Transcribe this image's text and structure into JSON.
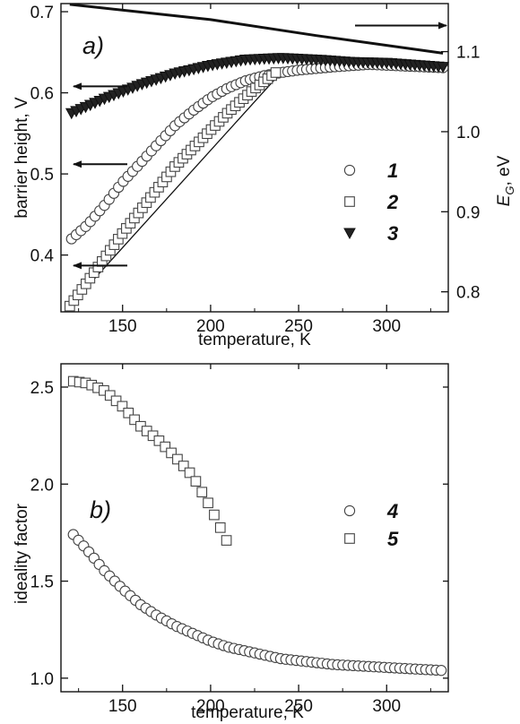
{
  "chart_data": [
    {
      "type": "scatter",
      "panel_label": "a)",
      "xlabel": "temperature, K",
      "ylabel": "barrier height, V",
      "y2label": "E",
      "y2label_sub": "G",
      "y2label_unit": ", eV",
      "xlim": [
        115,
        335
      ],
      "ylim": [
        0.33,
        0.71
      ],
      "y2lim": [
        0.775,
        1.16
      ],
      "xticks": [
        150,
        200,
        250,
        300
      ],
      "yticks": [
        0.4,
        0.5,
        0.6,
        0.7
      ],
      "y2ticks": [
        0.8,
        0.9,
        1.0,
        1.1
      ],
      "xtick_labels": [
        "150",
        "200",
        "250",
        "300"
      ],
      "ytick_labels": [
        "0.4",
        "0.5",
        "0.6",
        "0.7"
      ],
      "y2tick_labels": [
        "0.8",
        "0.9",
        "1.0",
        "1.1"
      ],
      "legend_position": "center-right",
      "series": [
        {
          "name": "1",
          "marker": "circle",
          "axis": "left",
          "x_range": [
            121,
            332
          ],
          "points": 80,
          "curve": [
            [
              121,
              0.42
            ],
            [
              130,
              0.437
            ],
            [
              140,
              0.462
            ],
            [
              150,
              0.49
            ],
            [
              160,
              0.513
            ],
            [
              170,
              0.537
            ],
            [
              180,
              0.56
            ],
            [
              190,
              0.578
            ],
            [
              200,
              0.594
            ],
            [
              210,
              0.606
            ],
            [
              220,
              0.615
            ],
            [
              230,
              0.621
            ],
            [
              240,
              0.625
            ],
            [
              250,
              0.628
            ],
            [
              270,
              0.632
            ],
            [
              290,
              0.635
            ],
            [
              310,
              0.633
            ],
            [
              332,
              0.631
            ]
          ]
        },
        {
          "name": "2",
          "marker": "square",
          "axis": "left",
          "x_range": [
            120,
            237
          ],
          "points": 52,
          "curve": [
            [
              120,
              0.337
            ],
            [
              150,
              0.427
            ],
            [
              180,
              0.51
            ],
            [
              210,
              0.576
            ],
            [
              225,
              0.605
            ],
            [
              237,
              0.625
            ]
          ]
        },
        {
          "name": "3",
          "marker": "triangle-down",
          "axis": "left",
          "x_range": [
            121,
            332
          ],
          "points": 80,
          "curve": [
            [
              121,
              0.575
            ],
            [
              140,
              0.593
            ],
            [
              160,
              0.61
            ],
            [
              180,
              0.624
            ],
            [
              200,
              0.634
            ],
            [
              220,
              0.641
            ],
            [
              240,
              0.643
            ],
            [
              260,
              0.641
            ],
            [
              280,
              0.638
            ],
            [
              300,
              0.637
            ],
            [
              332,
              0.632
            ]
          ]
        },
        {
          "name": "E_G",
          "marker": "line",
          "axis": "right",
          "curve": [
            [
              120,
              1.159
            ],
            [
              200,
              1.14
            ],
            [
              260,
              1.12
            ],
            [
              332,
              1.098
            ]
          ]
        }
      ],
      "fit_line": {
        "axis": "left",
        "points": [
          [
            117,
            0.33
          ],
          [
            240,
            0.625
          ]
        ]
      },
      "arrows": [
        {
          "direction": "left",
          "y": 0.608
        },
        {
          "direction": "left",
          "y": 0.512
        },
        {
          "direction": "left",
          "y": 0.387
        },
        {
          "direction": "right",
          "y": 0.683
        }
      ]
    },
    {
      "type": "scatter",
      "panel_label": "b)",
      "xlabel": "temperature, K",
      "ylabel": "ideality factor",
      "xlim": [
        115,
        335
      ],
      "ylim": [
        0.93,
        2.62
      ],
      "xticks": [
        150,
        200,
        250,
        300
      ],
      "yticks": [
        1.0,
        1.5,
        2.0,
        2.5
      ],
      "xtick_labels": [
        "150",
        "200",
        "250",
        "300"
      ],
      "ytick_labels": [
        "1.0",
        "1.5",
        "2.0",
        "2.5"
      ],
      "legend_position": "center-right",
      "series": [
        {
          "name": "4",
          "marker": "circle",
          "x_range": [
            122,
            331
          ],
          "points": 72,
          "curve": [
            [
              122,
              1.74
            ],
            [
              130,
              1.66
            ],
            [
              140,
              1.55
            ],
            [
              150,
              1.46
            ],
            [
              160,
              1.38
            ],
            [
              170,
              1.32
            ],
            [
              180,
              1.27
            ],
            [
              190,
              1.23
            ],
            [
              200,
              1.19
            ],
            [
              210,
              1.16
            ],
            [
              220,
              1.14
            ],
            [
              230,
              1.12
            ],
            [
              240,
              1.1
            ],
            [
              250,
              1.09
            ],
            [
              270,
              1.07
            ],
            [
              290,
              1.06
            ],
            [
              310,
              1.05
            ],
            [
              331,
              1.04
            ]
          ]
        },
        {
          "name": "5",
          "marker": "square",
          "x_range": [
            122,
            209
          ],
          "points": 26,
          "curve": [
            [
              122,
              2.53
            ],
            [
              130,
              2.52
            ],
            [
              140,
              2.48
            ],
            [
              150,
              2.4
            ],
            [
              160,
              2.3
            ],
            [
              170,
              2.23
            ],
            [
              180,
              2.14
            ],
            [
              190,
              2.04
            ],
            [
              200,
              1.88
            ],
            [
              209,
              1.71
            ]
          ]
        }
      ]
    }
  ]
}
